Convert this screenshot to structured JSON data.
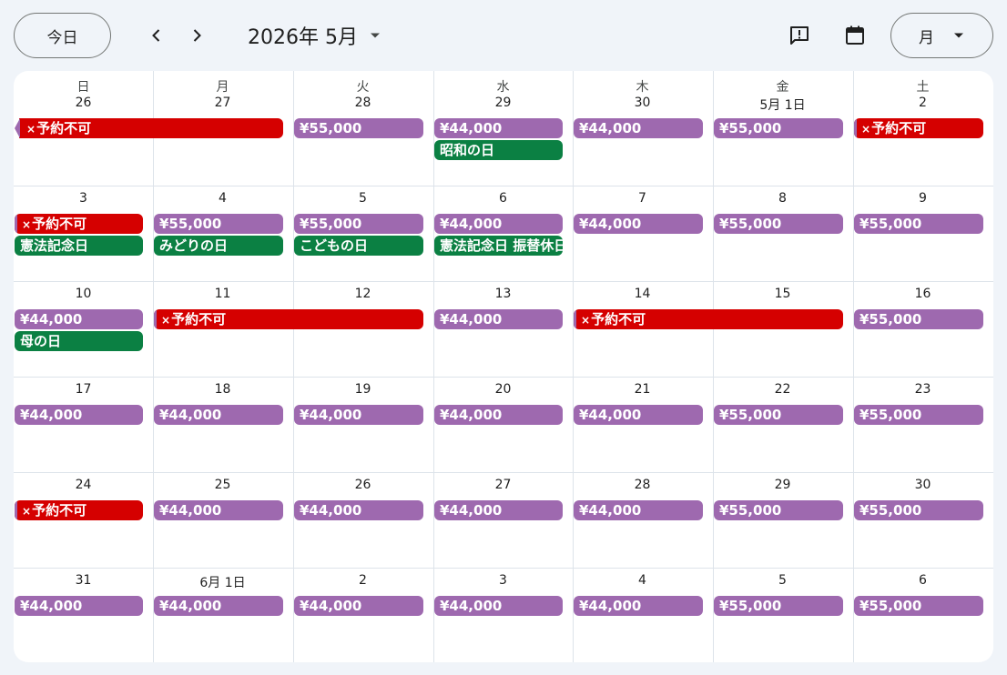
{
  "toolbar": {
    "today_label": "今日",
    "month_label": "2026年 5月",
    "view_label": "月",
    "icons": [
      "chevron-left-icon",
      "chevron-right-icon",
      "caret-down-icon",
      "feedback-icon",
      "calendar-icon"
    ]
  },
  "colors": {
    "price": "#9e69af",
    "holiday": "#0b8043",
    "blocked": "#d50000",
    "background": "#f0f4f9"
  },
  "weekdays": [
    "日",
    "月",
    "火",
    "水",
    "木",
    "金",
    "土"
  ],
  "weeks": [
    {
      "days": [
        "26",
        "27",
        "28",
        "29",
        "30",
        "5月 1日",
        "2"
      ]
    },
    {
      "days": [
        "3",
        "4",
        "5",
        "6",
        "7",
        "8",
        "9"
      ]
    },
    {
      "days": [
        "10",
        "11",
        "12",
        "13",
        "14",
        "15",
        "16"
      ]
    },
    {
      "days": [
        "17",
        "18",
        "19",
        "20",
        "21",
        "22",
        "23"
      ]
    },
    {
      "days": [
        "24",
        "25",
        "26",
        "27",
        "28",
        "29",
        "30"
      ]
    },
    {
      "days": [
        "31",
        "6月 1日",
        "2",
        "3",
        "4",
        "5",
        "6"
      ]
    }
  ],
  "events": [
    {
      "week": 0,
      "col": 0,
      "span": 2,
      "row": 0,
      "type": "blocked",
      "text": "予約不可",
      "mark": "×",
      "arrow": true
    },
    {
      "week": 0,
      "col": 2,
      "span": 1,
      "row": 0,
      "type": "price",
      "text": "¥55,000"
    },
    {
      "week": 0,
      "col": 3,
      "span": 1,
      "row": 0,
      "type": "price",
      "text": "¥44,000"
    },
    {
      "week": 0,
      "col": 3,
      "span": 1,
      "row": 1,
      "type": "holiday",
      "text": "昭和の日"
    },
    {
      "week": 0,
      "col": 4,
      "span": 1,
      "row": 0,
      "type": "price",
      "text": "¥44,000"
    },
    {
      "week": 0,
      "col": 5,
      "span": 1,
      "row": 0,
      "type": "price",
      "text": "¥55,000"
    },
    {
      "week": 0,
      "col": 6,
      "span": 1,
      "row": 0,
      "type": "blocked",
      "text": "予約不可",
      "mark": "×",
      "leftmark": true
    },
    {
      "week": 1,
      "col": 0,
      "span": 1,
      "row": 0,
      "type": "blocked",
      "text": "予約不可",
      "mark": "×",
      "leftmark": true
    },
    {
      "week": 1,
      "col": 0,
      "span": 1,
      "row": 1,
      "type": "holiday",
      "text": "憲法記念日"
    },
    {
      "week": 1,
      "col": 1,
      "span": 1,
      "row": 0,
      "type": "price",
      "text": "¥55,000"
    },
    {
      "week": 1,
      "col": 1,
      "span": 1,
      "row": 1,
      "type": "holiday",
      "text": "みどりの日"
    },
    {
      "week": 1,
      "col": 2,
      "span": 1,
      "row": 0,
      "type": "price",
      "text": "¥55,000"
    },
    {
      "week": 1,
      "col": 2,
      "span": 1,
      "row": 1,
      "type": "holiday",
      "text": "こどもの日"
    },
    {
      "week": 1,
      "col": 3,
      "span": 1,
      "row": 0,
      "type": "price",
      "text": "¥44,000"
    },
    {
      "week": 1,
      "col": 3,
      "span": 1,
      "row": 1,
      "type": "holiday",
      "text": "憲法記念日 振替休日"
    },
    {
      "week": 1,
      "col": 4,
      "span": 1,
      "row": 0,
      "type": "price",
      "text": "¥44,000"
    },
    {
      "week": 1,
      "col": 5,
      "span": 1,
      "row": 0,
      "type": "price",
      "text": "¥55,000"
    },
    {
      "week": 1,
      "col": 6,
      "span": 1,
      "row": 0,
      "type": "price",
      "text": "¥55,000"
    },
    {
      "week": 2,
      "col": 0,
      "span": 1,
      "row": 0,
      "type": "price",
      "text": "¥44,000"
    },
    {
      "week": 2,
      "col": 0,
      "span": 1,
      "row": 1,
      "type": "holiday",
      "text": "母の日"
    },
    {
      "week": 2,
      "col": 1,
      "span": 2,
      "row": 0,
      "type": "blocked",
      "text": "予約不可",
      "mark": "×",
      "leftmark": true
    },
    {
      "week": 2,
      "col": 3,
      "span": 1,
      "row": 0,
      "type": "price",
      "text": "¥44,000"
    },
    {
      "week": 2,
      "col": 4,
      "span": 2,
      "row": 0,
      "type": "blocked",
      "text": "予約不可",
      "mark": "×",
      "leftmark": true
    },
    {
      "week": 2,
      "col": 6,
      "span": 1,
      "row": 0,
      "type": "price",
      "text": "¥55,000"
    },
    {
      "week": 3,
      "col": 0,
      "span": 1,
      "row": 0,
      "type": "price",
      "text": "¥44,000"
    },
    {
      "week": 3,
      "col": 1,
      "span": 1,
      "row": 0,
      "type": "price",
      "text": "¥44,000"
    },
    {
      "week": 3,
      "col": 2,
      "span": 1,
      "row": 0,
      "type": "price",
      "text": "¥44,000"
    },
    {
      "week": 3,
      "col": 3,
      "span": 1,
      "row": 0,
      "type": "price",
      "text": "¥44,000"
    },
    {
      "week": 3,
      "col": 4,
      "span": 1,
      "row": 0,
      "type": "price",
      "text": "¥44,000"
    },
    {
      "week": 3,
      "col": 5,
      "span": 1,
      "row": 0,
      "type": "price",
      "text": "¥55,000"
    },
    {
      "week": 3,
      "col": 6,
      "span": 1,
      "row": 0,
      "type": "price",
      "text": "¥55,000"
    },
    {
      "week": 4,
      "col": 0,
      "span": 1,
      "row": 0,
      "type": "blocked",
      "text": "予約不可",
      "mark": "×",
      "leftmark": true
    },
    {
      "week": 4,
      "col": 1,
      "span": 1,
      "row": 0,
      "type": "price",
      "text": "¥44,000"
    },
    {
      "week": 4,
      "col": 2,
      "span": 1,
      "row": 0,
      "type": "price",
      "text": "¥44,000"
    },
    {
      "week": 4,
      "col": 3,
      "span": 1,
      "row": 0,
      "type": "price",
      "text": "¥44,000"
    },
    {
      "week": 4,
      "col": 4,
      "span": 1,
      "row": 0,
      "type": "price",
      "text": "¥44,000"
    },
    {
      "week": 4,
      "col": 5,
      "span": 1,
      "row": 0,
      "type": "price",
      "text": "¥55,000"
    },
    {
      "week": 4,
      "col": 6,
      "span": 1,
      "row": 0,
      "type": "price",
      "text": "¥55,000"
    },
    {
      "week": 5,
      "col": 0,
      "span": 1,
      "row": 0,
      "type": "price",
      "text": "¥44,000"
    },
    {
      "week": 5,
      "col": 1,
      "span": 1,
      "row": 0,
      "type": "price",
      "text": "¥44,000"
    },
    {
      "week": 5,
      "col": 2,
      "span": 1,
      "row": 0,
      "type": "price",
      "text": "¥44,000"
    },
    {
      "week": 5,
      "col": 3,
      "span": 1,
      "row": 0,
      "type": "price",
      "text": "¥44,000"
    },
    {
      "week": 5,
      "col": 4,
      "span": 1,
      "row": 0,
      "type": "price",
      "text": "¥44,000"
    },
    {
      "week": 5,
      "col": 5,
      "span": 1,
      "row": 0,
      "type": "price",
      "text": "¥55,000"
    },
    {
      "week": 5,
      "col": 6,
      "span": 1,
      "row": 0,
      "type": "price",
      "text": "¥55,000"
    }
  ]
}
